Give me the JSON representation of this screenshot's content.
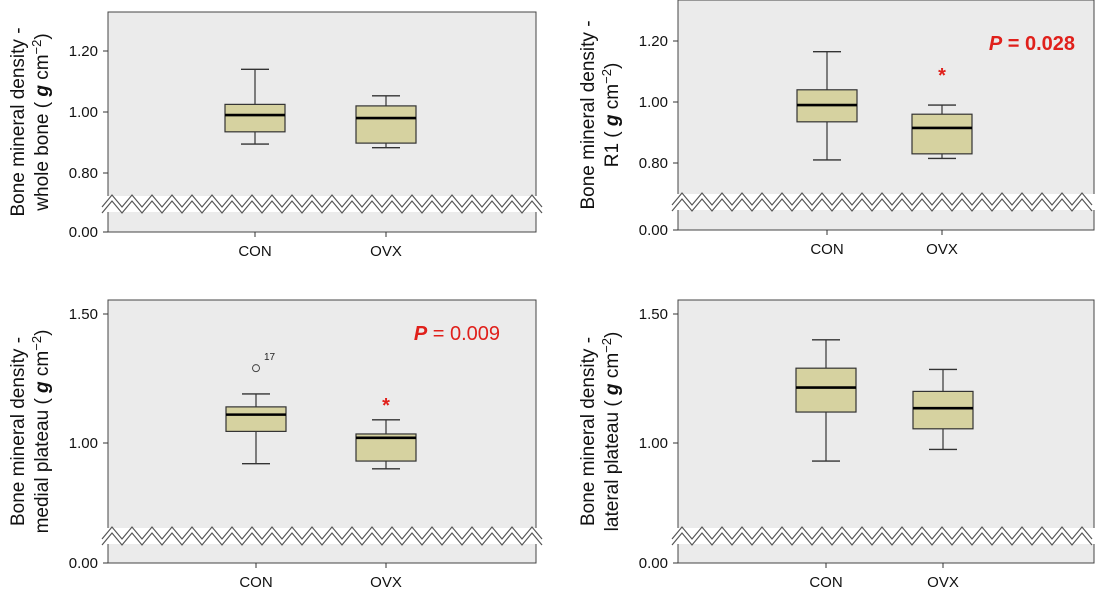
{
  "figure": {
    "box_fill": "#d6d2a0",
    "box_stroke": "#333333",
    "plot_bg": "#ebebeb",
    "sig_color": "#e0201b"
  },
  "chart_data": [
    {
      "type": "box",
      "ylabel_line1": "Bone mineral density -",
      "ylabel_line2": "whole bone (",
      "ylabel_unit": "g cm",
      "ylabel_exp": "−2",
      "yticks": [
        "1.20",
        "1.00",
        "0.80",
        "0.00"
      ],
      "ylim": [
        0.72,
        1.33
      ],
      "axis_break": true,
      "categories": [
        "CON",
        "OVX"
      ],
      "boxes": [
        {
          "name": "CON",
          "whisker_low": 0.895,
          "q1": 0.935,
          "median": 0.99,
          "q3": 1.025,
          "whisker_high": 1.14
        },
        {
          "name": "OVX",
          "whisker_low": 0.883,
          "q1": 0.898,
          "median": 0.98,
          "q3": 1.02,
          "whisker_high": 1.053
        }
      ],
      "outliers": [],
      "significance": null
    },
    {
      "type": "box",
      "ylabel_line1": "Bone mineral density -",
      "ylabel_line2": "R1 (",
      "ylabel_unit": "g cm",
      "ylabel_exp": "−2",
      "yticks": [
        "1.20",
        "1.00",
        "0.80",
        "0.00"
      ],
      "ylim": [
        0.72,
        1.33
      ],
      "axis_break": true,
      "categories": [
        "CON",
        "OVX"
      ],
      "boxes": [
        {
          "name": "CON",
          "whisker_low": 0.81,
          "q1": 0.935,
          "median": 0.99,
          "q3": 1.04,
          "whisker_high": 1.165
        },
        {
          "name": "OVX",
          "whisker_low": 0.815,
          "q1": 0.83,
          "median": 0.915,
          "q3": 0.96,
          "whisker_high": 0.99
        }
      ],
      "outliers": [],
      "significance": {
        "p_letter": "P",
        "p_text": " = 0.028",
        "star_on": "OVX",
        "star": "*"
      }
    },
    {
      "type": "box",
      "ylabel_line1": "Bone mineral density -",
      "ylabel_line2": "medial plateau (",
      "ylabel_unit": "g cm",
      "ylabel_exp": "−2",
      "yticks": [
        "1.50",
        "1.00",
        "0.00"
      ],
      "ylim": [
        0.7,
        1.53
      ],
      "axis_break": true,
      "categories": [
        "CON",
        "OVX"
      ],
      "boxes": [
        {
          "name": "CON",
          "whisker_low": 0.92,
          "q1": 1.045,
          "median": 1.11,
          "q3": 1.14,
          "whisker_high": 1.19
        },
        {
          "name": "OVX",
          "whisker_low": 0.9,
          "q1": 0.93,
          "median": 1.02,
          "q3": 1.035,
          "whisker_high": 1.09
        }
      ],
      "outliers": [
        {
          "category": "CON",
          "value": 1.29,
          "label": "17"
        }
      ],
      "significance": {
        "p_letter": "P",
        "p_text": " = 0.009",
        "star_on": "OVX",
        "star": "*"
      }
    },
    {
      "type": "box",
      "ylabel_line1": "Bone mineral density -",
      "ylabel_line2": "lateral plateau (",
      "ylabel_unit": "g cm",
      "ylabel_exp": "−2",
      "yticks": [
        "1.50",
        "1.00",
        "0.00"
      ],
      "ylim": [
        0.7,
        1.53
      ],
      "axis_break": true,
      "categories": [
        "CON",
        "OVX"
      ],
      "boxes": [
        {
          "name": "CON",
          "whisker_low": 0.93,
          "q1": 1.12,
          "median": 1.215,
          "q3": 1.29,
          "whisker_high": 1.4
        },
        {
          "name": "OVX",
          "whisker_low": 0.975,
          "q1": 1.055,
          "median": 1.135,
          "q3": 1.2,
          "whisker_high": 1.285
        }
      ],
      "outliers": [],
      "significance": null
    }
  ]
}
